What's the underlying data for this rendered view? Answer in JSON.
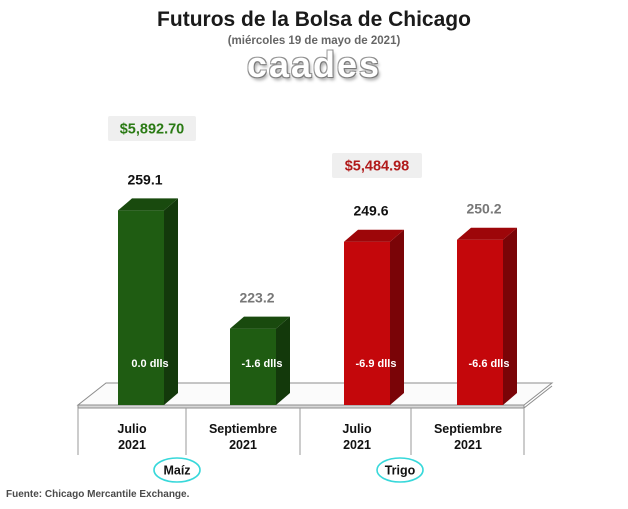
{
  "chart_data": {
    "type": "bar",
    "title": "Futuros de la Bolsa de Chicago",
    "subtitle": "(miércoles 19 de mayo de 2021)",
    "watermark": "caades",
    "groups": [
      {
        "label": "Maíz",
        "color": "#1f5c12",
        "price": "$5,892.70",
        "price_color": "#2a7a14"
      },
      {
        "label": "Trigo",
        "color": "#c4070b",
        "price": "$5,484.98",
        "price_color": "#b11a1a"
      }
    ],
    "bars": [
      {
        "category": "Julio 2021",
        "group": "Maíz",
        "value": 259.1,
        "value_label": "259.1",
        "change": "0.0 dlls",
        "value_color": "#111111"
      },
      {
        "category": "Septiembre 2021",
        "group": "Maíz",
        "value": 223.2,
        "value_label": "223.2",
        "change": "-1.6 dlls",
        "value_color": "#777777"
      },
      {
        "category": "Julio 2021",
        "group": "Trigo",
        "value": 249.6,
        "value_label": "249.6",
        "change": "-6.9 dlls",
        "value_color": "#111111"
      },
      {
        "category": "Septiembre 2021",
        "group": "Trigo",
        "value": 250.2,
        "value_label": "250.2",
        "change": "-6.6 dlls",
        "value_color": "#777777"
      }
    ],
    "categories": [
      [
        "Julio",
        "2021"
      ],
      [
        "Septiembre",
        "2021"
      ],
      [
        "Julio",
        "2021"
      ],
      [
        "Septiembre",
        "2021"
      ]
    ],
    "ylim": [
      200,
      265
    ],
    "grid": false,
    "legend": "none"
  },
  "source": "Fuente: Chicago Mercantile Exchange."
}
